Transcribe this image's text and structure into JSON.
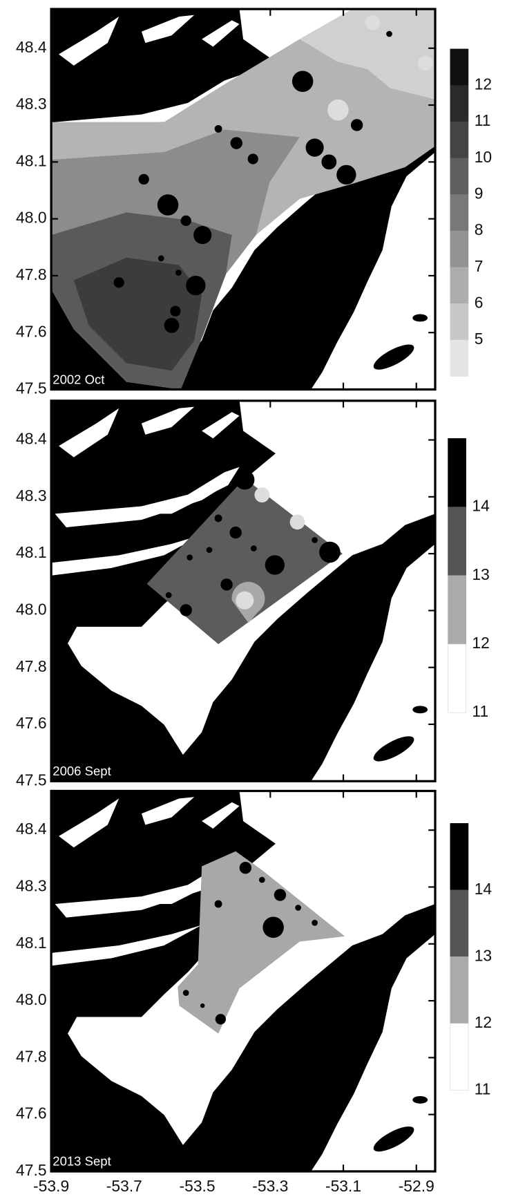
{
  "x_axis": {
    "ticks": [
      "-53.9",
      "-53.7",
      "-53.5",
      "-53.3",
      "-53.1",
      "-52.9"
    ]
  },
  "panels": [
    {
      "label": "2002 Oct",
      "y_ticks": [
        "48.4",
        "48.3",
        "48.1",
        "48.0",
        "47.8",
        "47.6",
        "47.5"
      ],
      "colorbar": [
        "12",
        "11",
        "10",
        "9",
        "8",
        "7",
        "6",
        "5"
      ]
    },
    {
      "label": "2006 Sept",
      "y_ticks": [
        "48.4",
        "48.3",
        "48.1",
        "48.0",
        "47.8",
        "47.6",
        "47.5"
      ],
      "colorbar": [
        "14",
        "13",
        "12",
        "11"
      ]
    },
    {
      "label": "2013 Sept",
      "y_ticks": [
        "48.4",
        "48.3",
        "48.1",
        "48.0",
        "47.8",
        "47.6",
        "47.5"
      ],
      "colorbar": [
        "14",
        "13",
        "12",
        "11"
      ]
    }
  ]
}
